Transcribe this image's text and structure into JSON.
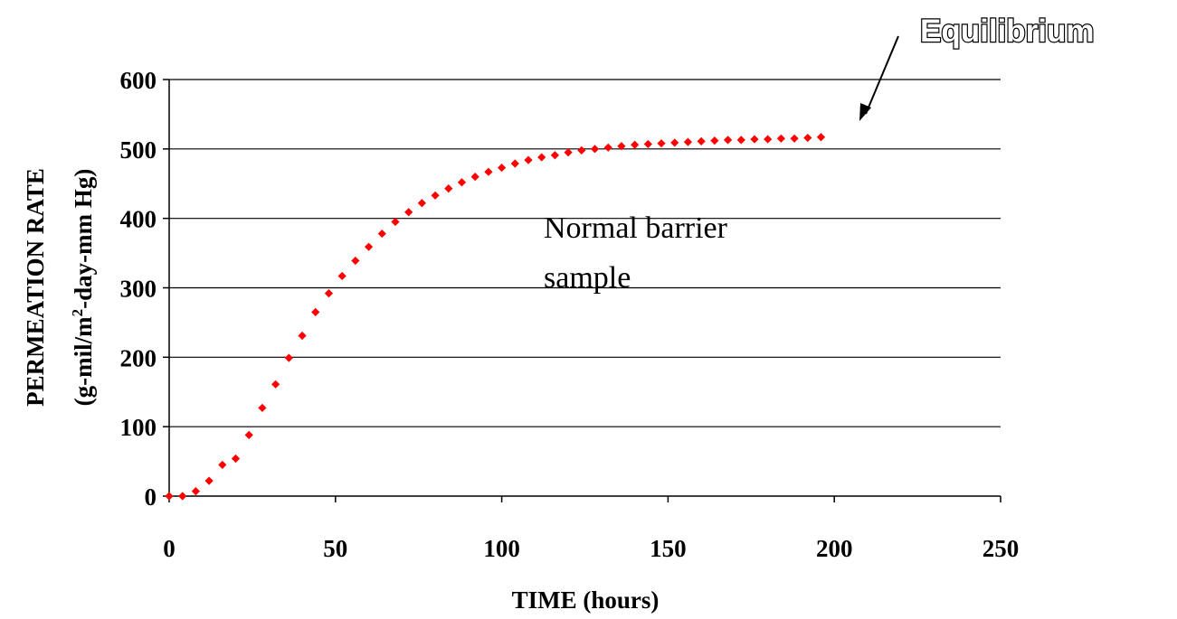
{
  "chart_data": {
    "type": "scatter",
    "xlabel": "TIME (hours)",
    "ylabel": {
      "line1": "PERMEATION RATE",
      "line2_prefix": "(g-mil/m",
      "line2_sup": "2",
      "line2_suffix": "-day-mm Hg)"
    },
    "xlim": [
      0,
      250
    ],
    "ylim": [
      0,
      600
    ],
    "x_ticks": [
      "0",
      "50",
      "100",
      "150",
      "200",
      "250"
    ],
    "y_ticks": [
      "0",
      "100",
      "200",
      "300",
      "400",
      "500",
      "600"
    ],
    "grid": "horizontal",
    "marker_color": "#ff0000",
    "annotations": {
      "curve_label": [
        "Normal barrier",
        "sample"
      ],
      "callout": "Equilibrium"
    },
    "series": [
      {
        "x": [
          0,
          4,
          8,
          12,
          16,
          20,
          24,
          28,
          32,
          36,
          40,
          44,
          48,
          52,
          56,
          60,
          64,
          68,
          72,
          76,
          80,
          84,
          88,
          92,
          96,
          100,
          104,
          108,
          112,
          116,
          120,
          124,
          128,
          132,
          136,
          140,
          144,
          148,
          152,
          156,
          160,
          164,
          168,
          172,
          176,
          180,
          184,
          188,
          192,
          196
        ],
        "y": [
          0,
          0,
          7,
          22,
          45,
          54,
          88,
          127,
          161,
          199,
          231,
          265,
          292,
          317,
          339,
          359,
          378,
          395,
          409,
          422,
          433,
          443,
          452,
          460,
          467,
          473,
          479,
          484,
          488,
          491,
          495,
          498,
          500,
          502,
          504,
          506,
          507,
          508,
          509,
          510,
          511,
          512,
          513,
          513,
          514,
          514,
          515,
          515,
          516,
          517
        ]
      }
    ]
  }
}
